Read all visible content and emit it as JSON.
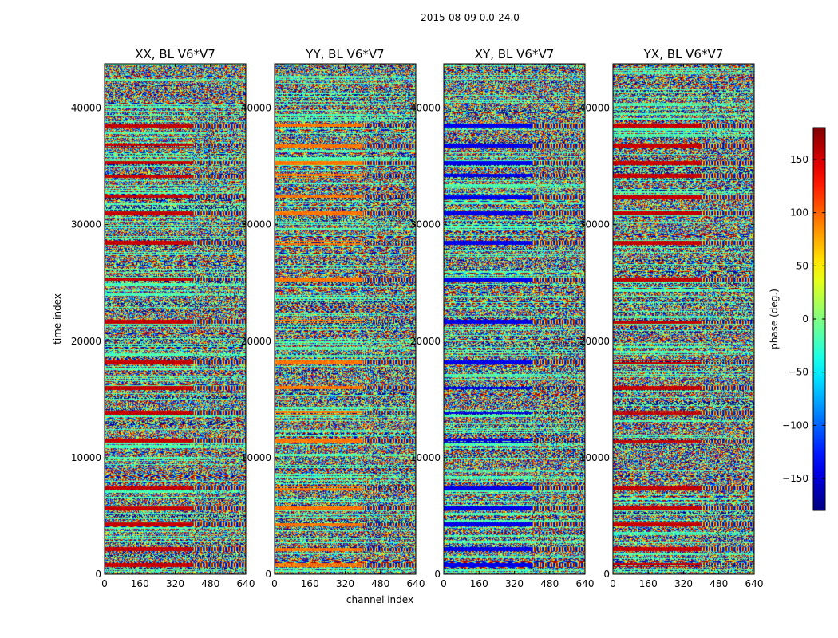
{
  "figure": {
    "suptitle": "2015-08-09 0.0-24.0"
  },
  "chart_data": {
    "type": "heatmap",
    "panels": [
      {
        "title": "XX, BL V6*V7",
        "highlight_color": "#8b0000"
      },
      {
        "title": "YY, BL V6*V7",
        "highlight_color": "#ff8c00"
      },
      {
        "title": "XY, BL V6*V7",
        "highlight_color": "#1e3cff"
      },
      {
        "title": "YX, BL V6*V7",
        "highlight_color": "#8b0000"
      }
    ],
    "xlabel": "channel index",
    "ylabel": "time index",
    "xlim": [
      0,
      640
    ],
    "ylim": [
      0,
      43800
    ],
    "xticks": [
      0,
      160,
      320,
      480,
      640
    ],
    "yticks": [
      0,
      10000,
      20000,
      30000,
      40000
    ],
    "colorbar": {
      "label": "phase (deg.)",
      "min": -180,
      "max": 180,
      "ticks": [
        -150,
        -100,
        -50,
        0,
        50,
        100,
        150
      ],
      "tick_labels": [
        "−150",
        "−100",
        "−50",
        "0",
        "50",
        "100",
        "150"
      ],
      "colormap": "jet"
    },
    "structure_rows": [
      800,
      2200,
      4300,
      5700,
      7400,
      11500,
      13900,
      16000,
      18200,
      21700,
      25300,
      28500,
      31000,
      32400,
      34200,
      35300,
      36800,
      38500
    ]
  }
}
